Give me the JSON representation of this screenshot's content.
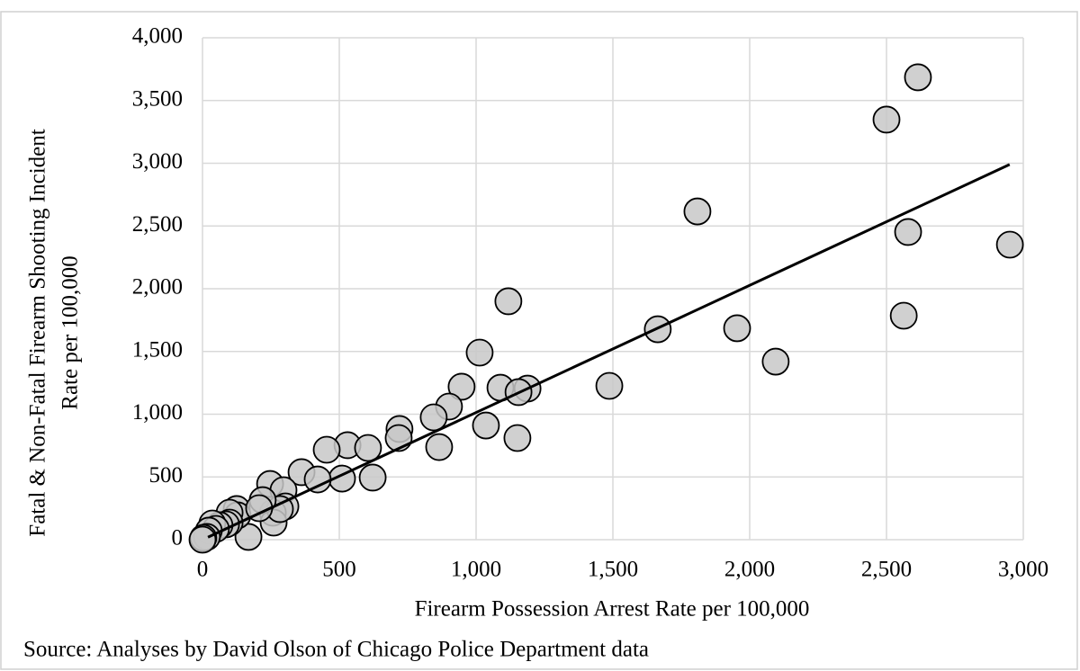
{
  "chart_data": {
    "type": "scatter",
    "xlabel": "Firearm Possession Arrest Rate per 100,000",
    "ylabel": [
      "Fatal & Non-Fatal Firearm Shooting Incident",
      "Rate per 100,000"
    ],
    "source": "Source: Analyses by David Olson of Chicago Police Department data",
    "xlim": [
      0,
      3000
    ],
    "ylim": [
      0,
      4000
    ],
    "xticks": [
      0,
      500,
      {
        "value": 1000,
        "label": "1,000"
      },
      {
        "value": 1500,
        "label": "1,500"
      },
      {
        "value": 2000,
        "label": "2,000"
      },
      {
        "value": 2500,
        "label": "2,500"
      },
      {
        "value": 3000,
        "label": "3,000"
      }
    ],
    "yticks": [
      0,
      500,
      {
        "value": 1000,
        "label": "1,000"
      },
      {
        "value": 1500,
        "label": "1,500"
      },
      {
        "value": 2000,
        "label": "2,000"
      },
      {
        "value": 2500,
        "label": "2,500"
      },
      {
        "value": 3000,
        "label": "3,000"
      },
      {
        "value": 3500,
        "label": "3,500"
      },
      {
        "value": 4000,
        "label": "4,000"
      }
    ],
    "grid": true,
    "color": "#c8c8c8",
    "x": [
      2615,
      2500,
      1809,
      2579,
      2951,
      2563,
      1118,
      1664,
      1954,
      2095,
      1013,
      1487,
      947,
      1089,
      1188,
      1155,
      901,
      845,
      1036,
      1151,
      865,
      720,
      717,
      530,
      454,
      605,
      622,
      510,
      362,
      421,
      247,
      296,
      303,
      257,
      260,
      283,
      220,
      168,
      125,
      128,
      99,
      99,
      86,
      62,
      36,
      49,
      23,
      16,
      3,
      0,
      207
    ],
    "y": [
      3685,
      3348,
      2616,
      2452,
      2351,
      1785,
      1900,
      1677,
      1685,
      1419,
      1491,
      1226,
      1219,
      1211,
      1204,
      1176,
      1061,
      975,
      910,
      810,
      738,
      882,
      810,
      753,
      717,
      731,
      495,
      487,
      538,
      480,
      444,
      394,
      265,
      215,
      136,
      244,
      315,
      22,
      244,
      194,
      215,
      136,
      122,
      115,
      129,
      86,
      72,
      22,
      14,
      0,
      251
    ],
    "trendline": {
      "x": [
        20,
        2950
      ],
      "y": [
        20,
        2990
      ],
      "color": "#000000"
    }
  }
}
